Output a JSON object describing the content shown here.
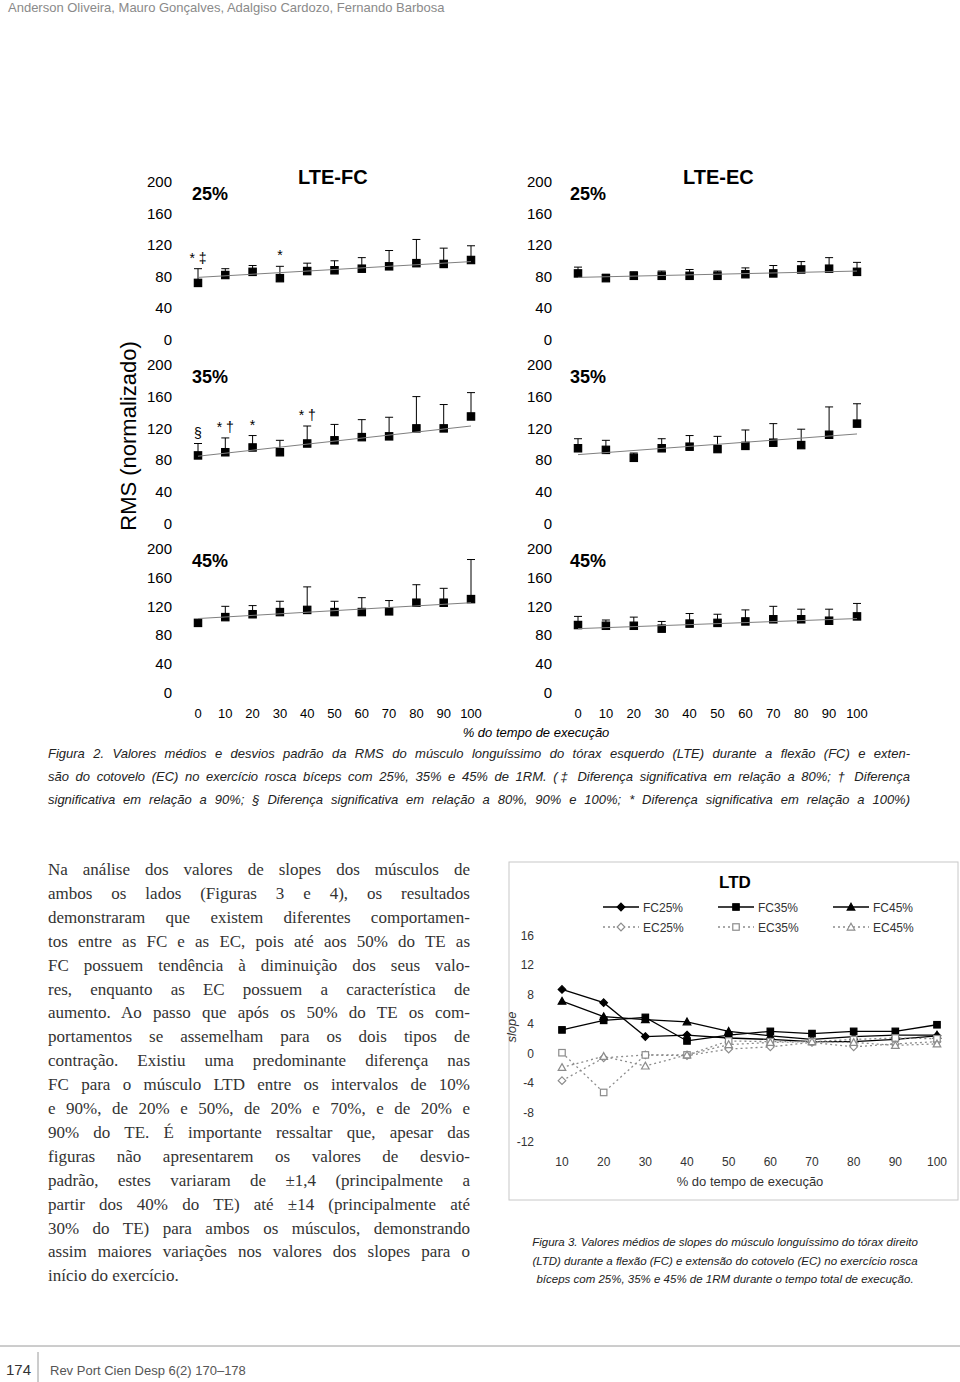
{
  "chart_data": [
    {
      "type": "scatter",
      "title": "25%",
      "x": [
        0,
        10,
        20,
        30,
        40,
        50,
        60,
        70,
        80,
        90,
        100
      ],
      "series": [
        {
          "type": "scatter",
          "marker": "square",
          "color": "#000000",
          "values": [
            71,
            81,
            85,
            77,
            86,
            87,
            89,
            92,
            96,
            95,
            100
          ],
          "error": [
            18,
            8,
            8,
            15,
            10,
            12,
            14,
            20,
            30,
            20,
            18
          ]
        },
        {
          "type": "line",
          "color": "#7f7f7f",
          "x": [
            0,
            100
          ],
          "values": [
            78,
            98
          ]
        }
      ],
      "annotations": [
        {
          "x": 0,
          "text": "* ‡"
        },
        {
          "x": 30,
          "text": "*"
        }
      ],
      "xlim": [
        0,
        100
      ],
      "xticks": [
        0,
        10,
        20,
        30,
        40,
        50,
        60,
        70,
        80,
        90,
        100
      ],
      "ylim": [
        0,
        200
      ],
      "yticks": [
        0,
        40,
        80,
        120,
        160,
        200
      ],
      "tick_labels": "y"
    },
    {
      "type": "scatter",
      "title": "25%",
      "x": [
        0,
        10,
        20,
        30,
        40,
        50,
        60,
        70,
        80,
        90,
        100
      ],
      "series": [
        {
          "type": "scatter",
          "marker": "square",
          "color": "#000000",
          "values": [
            83,
            77,
            80,
            80,
            80,
            80,
            82,
            83,
            88,
            89,
            85
          ],
          "error": [
            8,
            5,
            5,
            6,
            8,
            6,
            8,
            10,
            10,
            14,
            12
          ]
        },
        {
          "type": "line",
          "color": "#7f7f7f",
          "x": [
            0,
            100
          ],
          "values": [
            78,
            86
          ]
        }
      ],
      "xlim": [
        0,
        100
      ],
      "xticks": [
        0,
        10,
        20,
        30,
        40,
        50,
        60,
        70,
        80,
        90,
        100
      ],
      "ylim": [
        0,
        200
      ],
      "yticks": [
        0,
        40,
        80,
        120,
        160,
        200
      ],
      "tick_labels": "y"
    },
    {
      "type": "scatter",
      "title": "35%",
      "x": [
        0,
        10,
        20,
        30,
        40,
        50,
        60,
        70,
        80,
        90,
        100
      ],
      "series": [
        {
          "type": "scatter",
          "marker": "square",
          "color": "#000000",
          "values": [
            85,
            89,
            95,
            89,
            100,
            104,
            108,
            109,
            119,
            119,
            134
          ],
          "error": [
            15,
            18,
            15,
            15,
            22,
            20,
            22,
            24,
            40,
            30,
            30
          ]
        },
        {
          "type": "line",
          "color": "#7f7f7f",
          "x": [
            0,
            100
          ],
          "values": [
            84,
            122
          ]
        }
      ],
      "annotations": [
        {
          "x": 0,
          "text": "§"
        },
        {
          "x": 10,
          "text": "* †"
        },
        {
          "x": 20,
          "text": "*"
        },
        {
          "x": 40,
          "text": "* †"
        }
      ],
      "xlim": [
        0,
        100
      ],
      "xticks": [
        0,
        10,
        20,
        30,
        40,
        50,
        60,
        70,
        80,
        90,
        100
      ],
      "ylim": [
        0,
        200
      ],
      "yticks": [
        0,
        40,
        80,
        120,
        160,
        200
      ],
      "tick_labels": "y"
    },
    {
      "type": "scatter",
      "title": "35%",
      "x": [
        0,
        10,
        20,
        30,
        40,
        50,
        60,
        70,
        80,
        90,
        100
      ],
      "series": [
        {
          "type": "scatter",
          "marker": "square",
          "color": "#000000",
          "values": [
            94,
            92,
            82,
            94,
            96,
            93,
            97,
            101,
            98,
            111,
            125
          ],
          "error": [
            12,
            12,
            6,
            12,
            14,
            16,
            20,
            24,
            20,
            35,
            25
          ]
        },
        {
          "type": "line",
          "color": "#7f7f7f",
          "x": [
            0,
            100
          ],
          "values": [
            86,
            112
          ]
        }
      ],
      "xlim": [
        0,
        100
      ],
      "xticks": [
        0,
        10,
        20,
        30,
        40,
        50,
        60,
        70,
        80,
        90,
        100
      ],
      "ylim": [
        0,
        200
      ],
      "yticks": [
        0,
        40,
        80,
        120,
        160,
        200
      ],
      "tick_labels": "y"
    },
    {
      "type": "scatter",
      "title": "45%",
      "x": [
        0,
        10,
        20,
        30,
        40,
        50,
        60,
        70,
        80,
        90,
        100
      ],
      "series": [
        {
          "type": "scatter",
          "marker": "square",
          "color": "#000000",
          "values": [
            96,
            104,
            108,
            111,
            114,
            111,
            111,
            112,
            124,
            124,
            129
          ],
          "error": [
            3,
            15,
            12,
            15,
            32,
            15,
            20,
            15,
            25,
            20,
            55
          ]
        },
        {
          "type": "line",
          "color": "#7f7f7f",
          "x": [
            0,
            100
          ],
          "values": [
            102,
            124
          ]
        }
      ],
      "xlim": [
        0,
        100
      ],
      "xticks": [
        0,
        10,
        20,
        30,
        40,
        50,
        60,
        70,
        80,
        90,
        100
      ],
      "ylim": [
        0,
        200
      ],
      "yticks": [
        0,
        40,
        80,
        120,
        160,
        200
      ]
    },
    {
      "type": "scatter",
      "title": "45%",
      "x": [
        0,
        10,
        20,
        30,
        40,
        50,
        60,
        70,
        80,
        90,
        100
      ],
      "series": [
        {
          "type": "scatter",
          "marker": "square",
          "color": "#000000",
          "values": [
            93,
            92,
            92,
            88,
            95,
            96,
            98,
            101,
            101,
            99,
            105
          ],
          "error": [
            12,
            8,
            12,
            10,
            14,
            12,
            16,
            18,
            14,
            16,
            18
          ]
        },
        {
          "type": "line",
          "color": "#7f7f7f",
          "x": [
            0,
            100
          ],
          "values": [
            88,
            102
          ]
        }
      ],
      "xlim": [
        0,
        100
      ],
      "xticks": [
        0,
        10,
        20,
        30,
        40,
        50,
        60,
        70,
        80,
        90,
        100
      ],
      "ylim": [
        0,
        200
      ],
      "yticks": [
        0,
        40,
        80,
        120,
        160,
        200
      ]
    },
    {
      "type": "line",
      "title": "LTD",
      "x_label": "% do tempo de execução",
      "y_label": "slope",
      "x": [
        10,
        20,
        30,
        40,
        50,
        60,
        70,
        80,
        90,
        100
      ],
      "series": [
        {
          "name": "FC25%",
          "color": "#000000",
          "marker": "diamond",
          "line_style": "solid",
          "values": [
            8.6,
            6.8,
            2.2,
            2.4,
            2.0,
            1.8,
            1.5,
            1.5,
            1.8,
            2.3
          ]
        },
        {
          "name": "FC35%",
          "color": "#000000",
          "marker": "square",
          "line_style": "solid",
          "values": [
            3.1,
            4.4,
            4.8,
            1.6,
            2.4,
            2.9,
            2.6,
            2.9,
            2.9,
            3.8
          ]
        },
        {
          "name": "FC45%",
          "color": "#000000",
          "marker": "triangle",
          "line_style": "solid",
          "values": [
            7.0,
            4.9,
            4.5,
            4.2,
            2.9,
            2.3,
            1.8,
            2.2,
            2.4,
            2.4
          ]
        },
        {
          "name": "EC25%",
          "color": "#8c8c8c",
          "marker": "open-diamond",
          "line_style": "dotted",
          "values": [
            -3.8,
            -0.7,
            -0.3,
            -0.4,
            0.5,
            0.8,
            1.4,
            0.8,
            1.2,
            1.5
          ]
        },
        {
          "name": "EC35%",
          "color": "#8c8c8c",
          "marker": "open-square",
          "line_style": "dotted",
          "values": [
            0.0,
            -5.4,
            -0.3,
            -0.3,
            1.6,
            1.5,
            1.5,
            1.8,
            2.0,
            1.9
          ]
        },
        {
          "name": "EC45%",
          "color": "#8c8c8c",
          "marker": "open-triangle",
          "line_style": "dotted",
          "values": [
            -2.0,
            -0.5,
            -1.8,
            -0.3,
            1.1,
            1.4,
            1.5,
            1.4,
            1.0,
            1.2
          ]
        }
      ],
      "xlim": [
        10,
        100
      ],
      "xticks": [
        10,
        20,
        30,
        40,
        50,
        60,
        70,
        80,
        90,
        100
      ],
      "ylim": [
        -12,
        16
      ],
      "yticks": [
        -12,
        -8,
        -4,
        0,
        4,
        8,
        12,
        16
      ],
      "legend": "top"
    }
  ],
  "document": {
    "header": "Anderson Oliveira, Mauro Gonçalves, Adalgiso Cardozo, Fernando Barbosa",
    "figure2": {
      "columns": [
        "LTE-FC",
        "LTE-EC"
      ],
      "y_label": "RMS (normalizado)",
      "x_label": "% do tempo de execução",
      "caption": [
        "Figura 2. Valores médios e desvios padrão da RMS do músculo longuíssimo do tórax esquerdo (LTE) durante a flexão (FC) e exten-",
        "são do cotovelo (EC) no exercício rosca bíceps com 25%, 35% e 45% de 1RM. (‡ Diferença significativa em relação a 80%; † Diferença",
        "significativa em relação a 90%; § Diferença significativa em relação a 80%, 90% e 100%; * Diferença significativa em relação a 100%)"
      ]
    },
    "body": [
      "Na análise dos valores de slopes dos músculos de",
      "ambos os lados (Figuras 3 e 4), os resultados",
      "demonstraram que existem diferentes comportamen-",
      "tos entre as FC e as EC, pois até aos 50% do TE as",
      "FC possuem tendência à diminuição dos seus valo-",
      "res, enquanto as EC possuem a característica de",
      "aumento. Ao passo que após os 50% do TE os com-",
      "portamentos se assemelham para os dois tipos de",
      "contração. Existiu uma predominante diferença nas",
      "FC para o músculo LTD entre os intervalos de 10%",
      "e 90%, de 20% e 50%, de 20% e 70%, e de 20% e",
      "90% do TE. É importante ressaltar que, apesar das",
      "figuras não apresentarem os valores de desvio-",
      "padrão, estes variaram de ±1,4 (principalmente a",
      "partir dos 40% do TE) até ±14 (principalmente até",
      "30% do TE) para ambos os músculos, demonstrando",
      "assim maiores variações nos valores dos slopes para o",
      "início do exercício."
    ],
    "figure3": {
      "caption": [
        "Figura 3. Valores médios de slopes do músculo longuíssimo do tórax direito",
        "(LTD) durante a flexão (FC) e extensão do cotovelo (EC) no exercício rosca",
        "bíceps com 25%, 35% e 45% de 1RM durante o tempo total de execução."
      ]
    },
    "footer": {
      "page": "174",
      "journal": "Rev Port Cien Desp 6(2) 170–178"
    }
  }
}
